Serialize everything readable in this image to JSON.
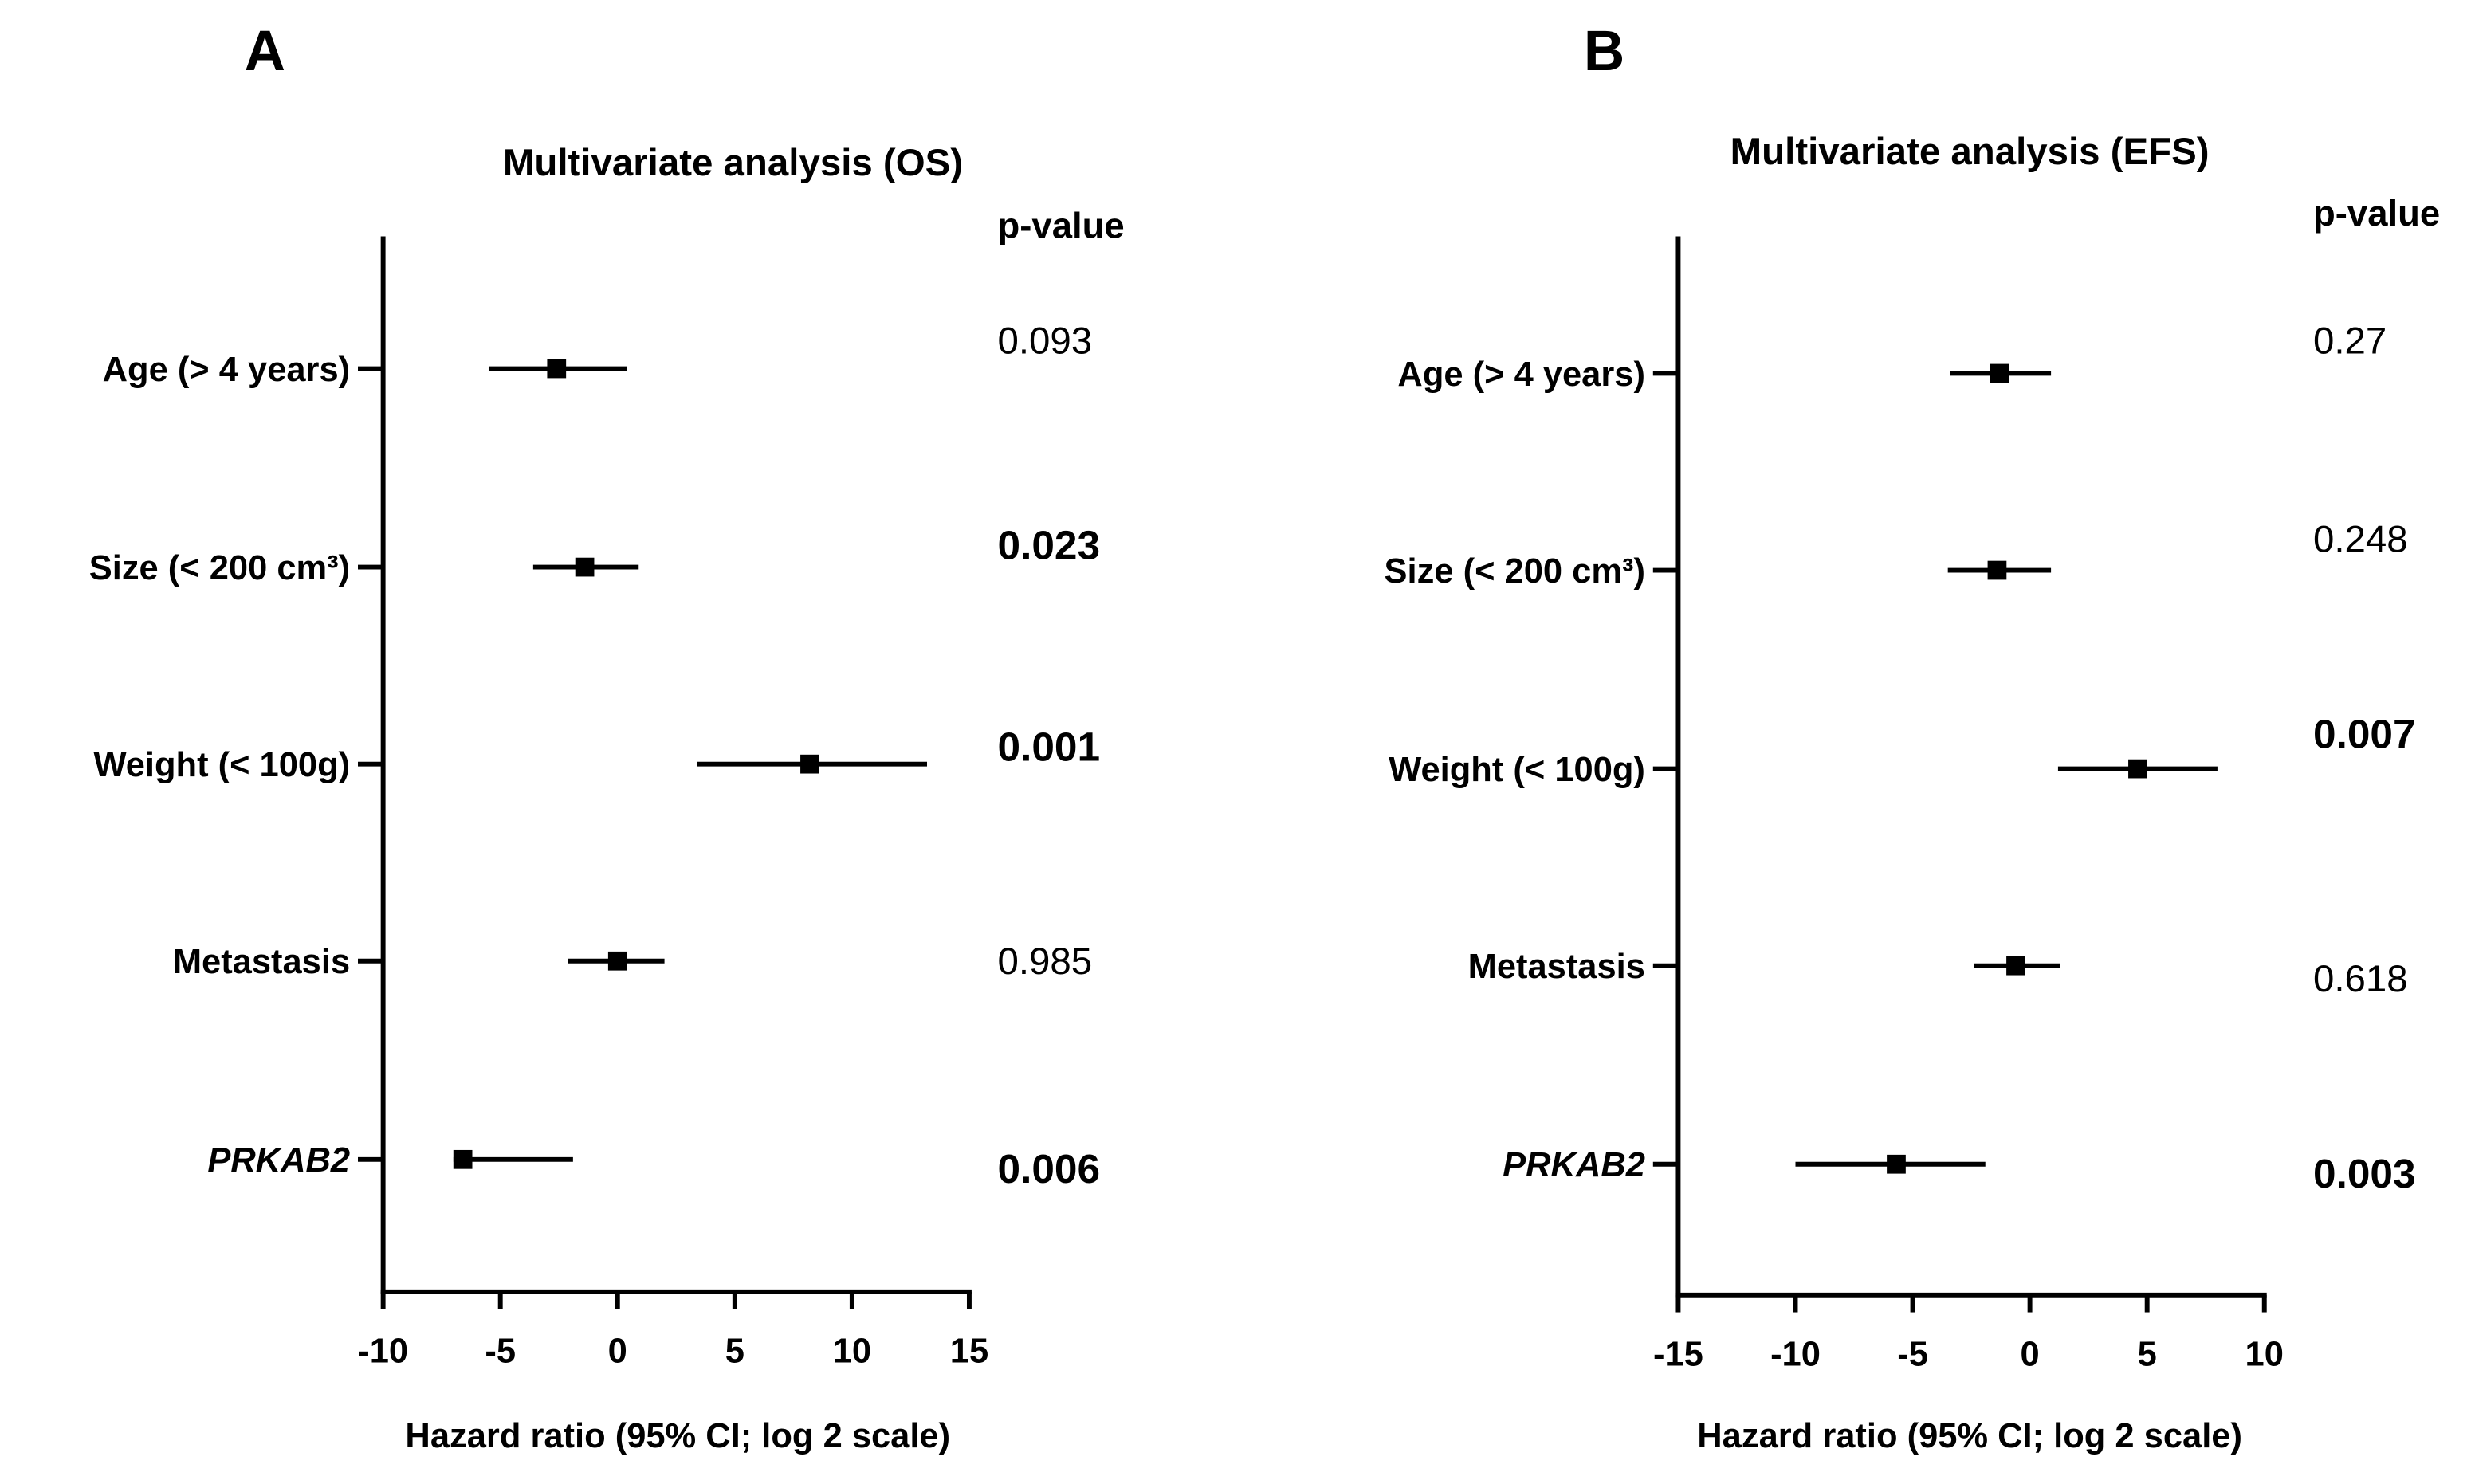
{
  "chart_data": [
    {
      "type": "forest",
      "panel": "A",
      "title": "Multivariate analysis (OS)",
      "pvalue_header": "p-value",
      "xlabel": "Hazard ratio (95% CI; log 2 scale)",
      "categories": [
        "Age (> 4 years)",
        "Size (< 200 cm³)",
        "Weight (< 100g)",
        "Metastasis",
        "PRKAB2"
      ],
      "italic": [
        false,
        false,
        false,
        false,
        true
      ],
      "values": [
        -2.6,
        -1.4,
        8.2,
        0.0,
        -6.6
      ],
      "ci": [
        [
          -5.5,
          0.4
        ],
        [
          -3.6,
          0.9
        ],
        [
          3.4,
          13.2
        ],
        [
          -2.1,
          2.0
        ],
        [
          -7.0,
          -1.9
        ]
      ],
      "pvalues": [
        "0.093",
        "0.023",
        "0.001",
        "0.985",
        "0.006"
      ],
      "pvalue_bold": [
        false,
        true,
        true,
        false,
        true
      ],
      "xlim": [
        -10,
        15
      ],
      "xticks": [
        -10,
        -5,
        0,
        5,
        10,
        15
      ],
      "color": "#000000"
    },
    {
      "type": "forest",
      "panel": "B",
      "title": "Multivariate analysis (EFS)",
      "pvalue_header": "p-value",
      "xlabel": "Hazard ratio (95% CI; log 2 scale)",
      "categories": [
        "Age (> 4 years)",
        "Size (< 200 cm³)",
        "Weight (< 100g)",
        "Metastasis",
        "PRKAB2"
      ],
      "italic": [
        false,
        false,
        false,
        false,
        true
      ],
      "values": [
        -1.3,
        -1.4,
        4.6,
        -0.6,
        -5.7
      ],
      "ci": [
        [
          -3.4,
          0.9
        ],
        [
          -3.5,
          0.9
        ],
        [
          1.2,
          8.0
        ],
        [
          -2.4,
          1.3
        ],
        [
          -10.0,
          -1.9
        ]
      ],
      "pvalues": [
        "0.27",
        "0.248",
        "0.007",
        "0.618",
        "0.003"
      ],
      "pvalue_bold": [
        false,
        false,
        true,
        false,
        true
      ],
      "xlim": [
        -15,
        10
      ],
      "xticks": [
        -15,
        -10,
        -5,
        0,
        5,
        10
      ],
      "color": "#000000"
    }
  ]
}
